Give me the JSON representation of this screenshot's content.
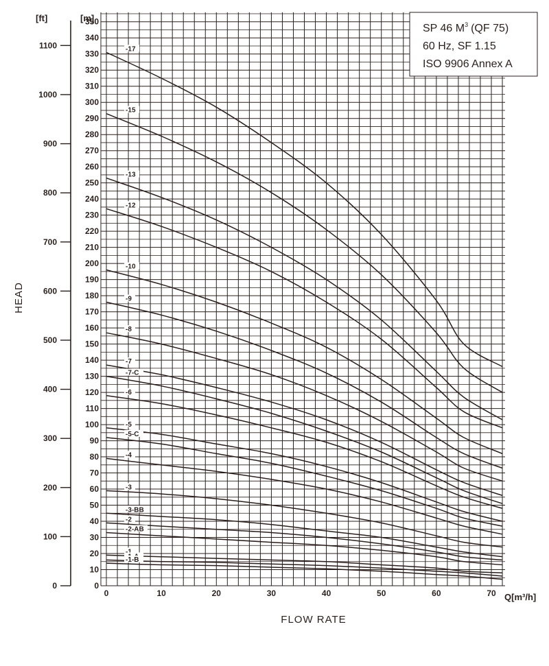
{
  "chart_data": {
    "type": "line",
    "xlabel": "FLOW RATE",
    "ylabel": "HEAD",
    "x_unit": "Q[m³/h]",
    "y_unit_left": "[ft]",
    "y_unit_right": "[m]",
    "xlim": [
      0,
      72
    ],
    "ylim": [
      0,
      355
    ],
    "x_ticks": [
      0,
      10,
      20,
      30,
      40,
      50,
      60,
      70
    ],
    "y_ticks_m": [
      0,
      10,
      20,
      30,
      40,
      50,
      60,
      70,
      80,
      90,
      100,
      110,
      120,
      130,
      140,
      150,
      160,
      170,
      180,
      190,
      200,
      210,
      220,
      230,
      240,
      250,
      260,
      270,
      280,
      290,
      300,
      310,
      320,
      330,
      340,
      350
    ],
    "y_ticks_ft": [
      0,
      100,
      200,
      300,
      400,
      500,
      600,
      700,
      800,
      900,
      1000,
      1100
    ],
    "grid": true,
    "info": {
      "line1_main": "SP 46 M",
      "line1_sup": "3",
      "line1_rest": "(QF 75)",
      "line2": "60 Hz, SF 1.15",
      "line3": "ISO 9906 Annex A"
    },
    "series": [
      {
        "name": "-17",
        "x": [
          0,
          10,
          20,
          30,
          40,
          50,
          60,
          65,
          72
        ],
        "y": [
          331,
          315,
          297,
          275,
          250,
          218,
          177,
          150,
          136
        ]
      },
      {
        "name": "-15",
        "x": [
          0,
          10,
          20,
          30,
          40,
          50,
          60,
          65,
          72
        ],
        "y": [
          293,
          279,
          263,
          244,
          221,
          193,
          157,
          135,
          120
        ]
      },
      {
        "name": "-13",
        "x": [
          0,
          10,
          20,
          30,
          40,
          50,
          60,
          65,
          72
        ],
        "y": [
          253,
          241,
          227,
          210,
          190,
          165,
          133,
          117,
          103
        ]
      },
      {
        "name": "-12",
        "x": [
          0,
          10,
          20,
          30,
          40,
          50,
          60,
          65,
          72
        ],
        "y": [
          234,
          223,
          210,
          195,
          176,
          153,
          123,
          108,
          98
        ]
      },
      {
        "name": "-10",
        "x": [
          0,
          10,
          20,
          30,
          40,
          50,
          60,
          65,
          72
        ],
        "y": [
          196,
          187,
          176,
          163,
          148,
          128,
          104,
          92,
          82
        ]
      },
      {
        "name": "-9",
        "x": [
          0,
          10,
          20,
          30,
          40,
          50,
          60,
          65,
          72
        ],
        "y": [
          176,
          168,
          158,
          146,
          132,
          114,
          92,
          82,
          73
        ]
      },
      {
        "name": "-8",
        "x": [
          0,
          10,
          20,
          30,
          40,
          50,
          60,
          65,
          72
        ],
        "y": [
          157,
          150,
          141,
          131,
          118,
          102,
          83,
          73,
          65
        ]
      },
      {
        "name": "-7",
        "x": [
          0,
          10,
          20,
          30,
          40,
          50,
          60,
          65,
          72
        ],
        "y": [
          137,
          131,
          123,
          114,
          103,
          89,
          72,
          64,
          56
        ]
      },
      {
        "name": "-7-C",
        "x": [
          0,
          10,
          20,
          30,
          40,
          50,
          60,
          65,
          72
        ],
        "y": [
          130,
          124,
          116,
          107,
          96,
          83,
          67,
          59,
          51
        ]
      },
      {
        "name": "-6",
        "x": [
          0,
          10,
          20,
          30,
          40,
          50,
          60,
          65,
          72
        ],
        "y": [
          118,
          113,
          106,
          98,
          89,
          77,
          62,
          55,
          48
        ]
      },
      {
        "name": "-5",
        "x": [
          0,
          10,
          20,
          30,
          40,
          50,
          60,
          65,
          72
        ],
        "y": [
          98,
          94,
          88,
          82,
          74,
          64,
          52,
          46,
          40
        ]
      },
      {
        "name": "-5-C",
        "x": [
          0,
          10,
          20,
          30,
          40,
          50,
          60,
          65,
          72
        ],
        "y": [
          92,
          88,
          82,
          76,
          68,
          59,
          48,
          42,
          37
        ]
      },
      {
        "name": "-4",
        "x": [
          0,
          10,
          20,
          30,
          40,
          50,
          60,
          65,
          72
        ],
        "y": [
          79,
          75,
          71,
          66,
          60,
          52,
          42,
          37,
          32
        ]
      },
      {
        "name": "-3",
        "x": [
          0,
          10,
          20,
          30,
          40,
          50,
          60,
          65,
          72
        ],
        "y": [
          59,
          57,
          54,
          50,
          45,
          39,
          31,
          27,
          24
        ]
      },
      {
        "name": "-3-BB",
        "x": [
          0,
          10,
          20,
          30,
          40,
          50,
          60,
          65,
          72
        ],
        "y": [
          45,
          43,
          41,
          38,
          34,
          30,
          24,
          21,
          18
        ]
      },
      {
        "name": "-2",
        "x": [
          0,
          10,
          20,
          30,
          40,
          50,
          60,
          65,
          72
        ],
        "y": [
          39,
          37,
          35,
          33,
          30,
          26,
          21,
          18,
          16
        ]
      },
      {
        "name": "-2-AB",
        "x": [
          0,
          10,
          20,
          30,
          40,
          50,
          60,
          65,
          72
        ],
        "y": [
          33,
          31,
          29,
          27,
          25,
          22,
          18,
          15,
          13
        ]
      },
      {
        "name": "-1",
        "x": [
          0,
          10,
          20,
          30,
          40,
          50,
          60,
          65,
          72
        ],
        "y": [
          19,
          18,
          17,
          16,
          15,
          13,
          11,
          9,
          8
        ]
      },
      {
        "name": "-1-A",
        "x": [
          0,
          10,
          20,
          30,
          40,
          50,
          60,
          65,
          72
        ],
        "y": [
          16,
          15,
          14.5,
          13.5,
          12.5,
          11,
          9,
          8,
          6
        ]
      },
      {
        "name": "-1-B",
        "x": [
          0,
          10,
          20,
          30,
          40,
          50,
          60,
          65,
          72
        ],
        "y": [
          14,
          13,
          12.5,
          11.5,
          10.5,
          9,
          7,
          6,
          4
        ]
      }
    ]
  }
}
